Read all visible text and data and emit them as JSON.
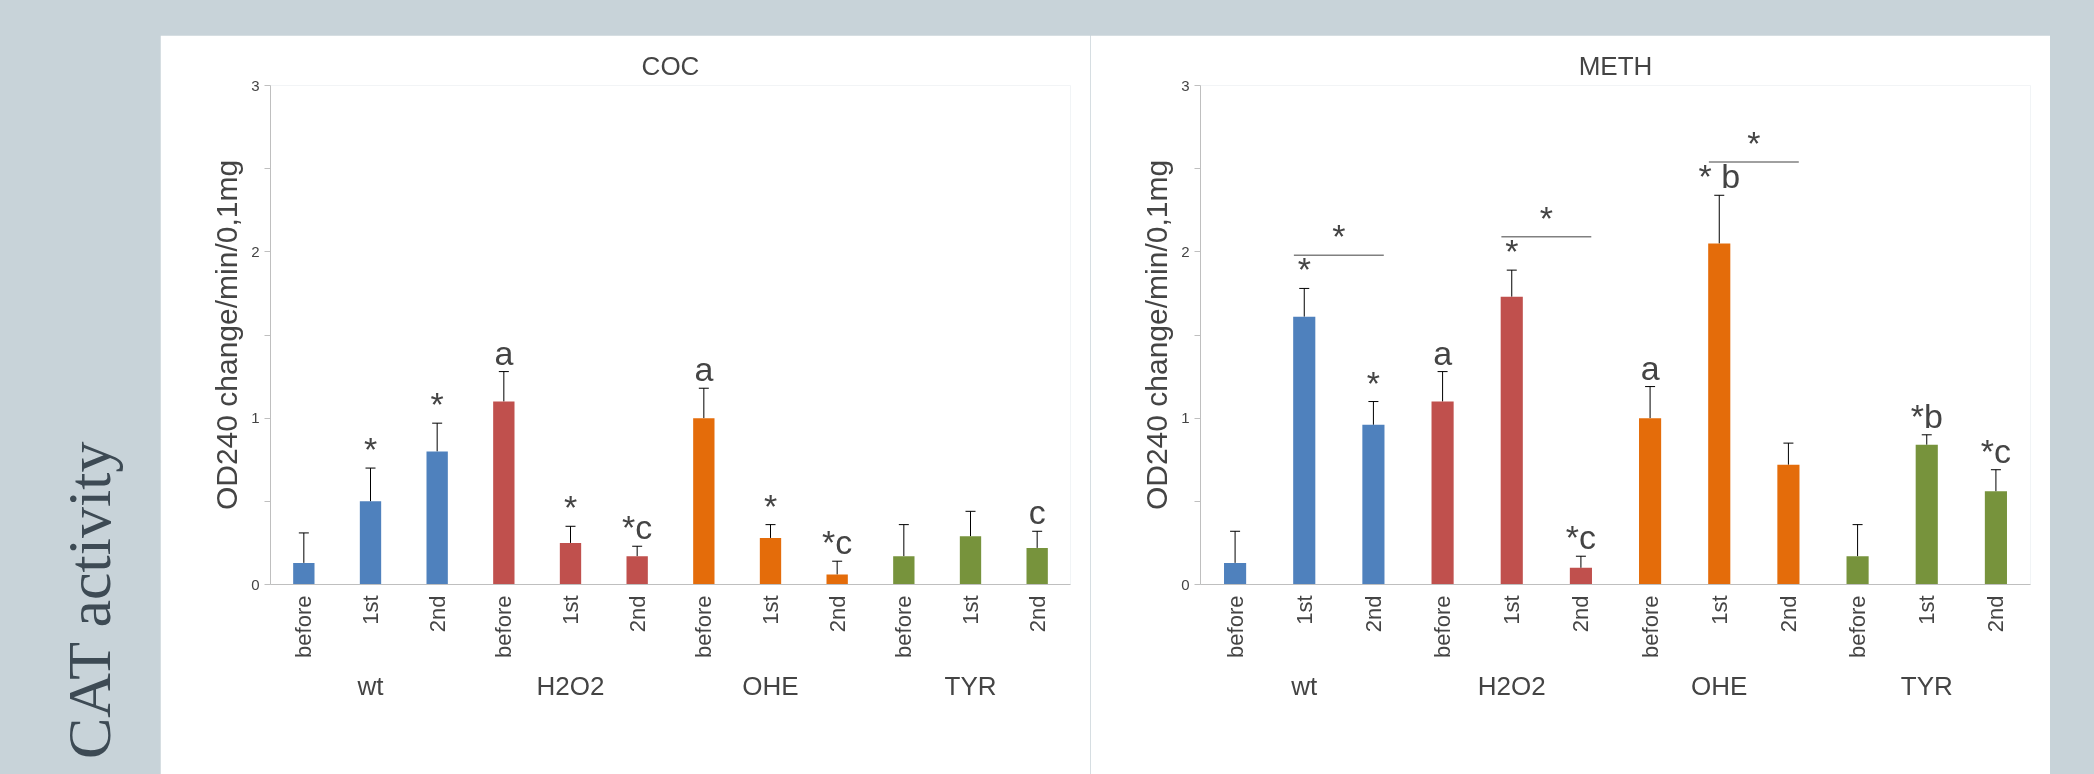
{
  "chart_data": [
    {
      "type": "other",
      "title": "CAT activity"
    },
    {
      "type": "bar",
      "title": "COC",
      "ylabel": "OD240 change/min/0,1mg",
      "categories": [
        "before",
        "1st",
        "2nd",
        "before",
        "1st",
        "2nd",
        "before",
        "1st",
        "2nd",
        "before",
        "1st",
        "2nd"
      ],
      "values": [
        0.13,
        0.5,
        0.8,
        1.1,
        0.25,
        0.17,
        1.0,
        0.28,
        0.06,
        0.17,
        0.29,
        0.22
      ],
      "errors": [
        0.18,
        0.2,
        0.17,
        0.18,
        0.1,
        0.06,
        0.18,
        0.08,
        0.08,
        0.19,
        0.15,
        0.1
      ],
      "colors": [
        "#4f81bd",
        "#4f81bd",
        "#4f81bd",
        "#c0504d",
        "#c0504d",
        "#c0504d",
        "#e46c0a",
        "#e46c0a",
        "#e46c0a",
        "#77933c",
        "#77933c",
        "#77933c"
      ],
      "value_labels": [
        null,
        "*",
        "*",
        "a",
        "*",
        "*c",
        "a",
        "*",
        "*c",
        null,
        null,
        "c"
      ],
      "annotations": [
        "wt",
        "H2O2",
        "OHE",
        "TYR"
      ],
      "ylim": [
        0,
        3
      ],
      "yticks": [
        0,
        {
          "value": 0.5,
          "label": null
        },
        1,
        {
          "value": 1.5,
          "label": null
        },
        2,
        {
          "value": 2.5,
          "label": null
        },
        3
      ],
      "grid": false
    },
    {
      "type": "bar",
      "title": "METH",
      "ylabel": "OD240 change/min/0,1mg",
      "categories": [
        "before",
        "1st",
        "2nd",
        "before",
        "1st",
        "2nd",
        "before",
        "1st",
        "2nd",
        "before",
        "1st",
        "2nd"
      ],
      "values": [
        0.13,
        1.61,
        0.96,
        1.1,
        1.73,
        0.1,
        1.0,
        2.05,
        0.72,
        0.17,
        0.84,
        0.56
      ],
      "errors": [
        0.19,
        0.17,
        0.14,
        0.18,
        0.16,
        0.07,
        0.19,
        0.29,
        0.13,
        0.19,
        0.06,
        0.13
      ],
      "colors": [
        "#4f81bd",
        "#4f81bd",
        "#4f81bd",
        "#c0504d",
        "#c0504d",
        "#c0504d",
        "#e46c0a",
        "#e46c0a",
        "#e46c0a",
        "#77933c",
        "#77933c",
        "#77933c"
      ],
      "value_labels": [
        null,
        "*",
        "*",
        "a",
        "*",
        "*c",
        "a",
        "* b",
        null,
        null,
        "*b",
        "*c"
      ],
      "annotations": [
        "wt",
        "H2O2",
        "OHE",
        "TYR",
        "*",
        "*",
        "*"
      ],
      "ylim": [
        0,
        3
      ],
      "yticks": [
        0,
        {
          "value": 0.5,
          "label": null
        },
        1,
        {
          "value": 1.5,
          "label": null
        },
        2,
        {
          "value": 2.5,
          "label": null
        },
        3
      ],
      "grid": false
    }
  ]
}
